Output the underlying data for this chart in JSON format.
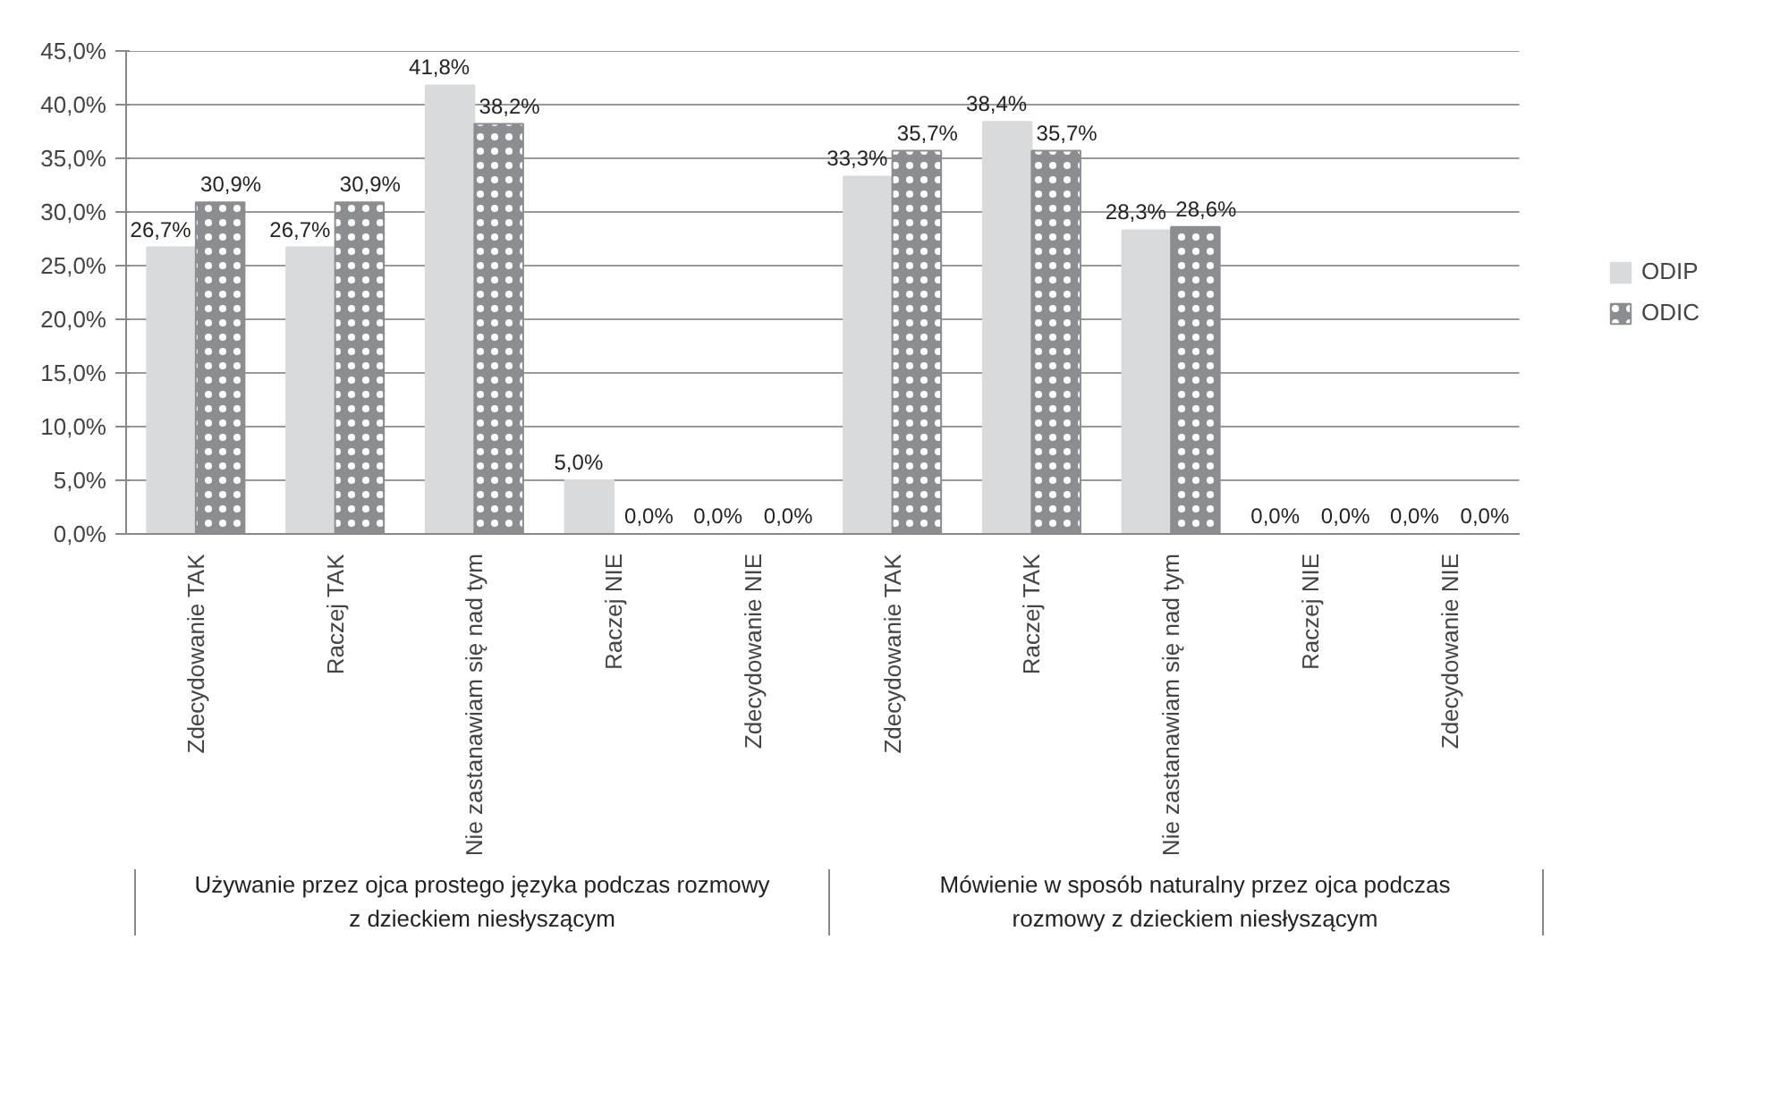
{
  "chart_data": {
    "type": "bar",
    "categories": [
      "Zdecydowanie TAK",
      "Raczej TAK",
      "Nie zastanawiam się nad tym",
      "Raczej NIE",
      "Zdecydowanie NIE",
      "Zdecydowanie TAK",
      "Raczej TAK",
      "Nie zastanawiam się nad tym",
      "Raczej NIE",
      "Zdecydowanie NIE"
    ],
    "series": [
      {
        "name": "ODIP",
        "color": "#d9dadc",
        "values": [
          26.7,
          26.7,
          41.8,
          5.0,
          0.0,
          33.3,
          38.4,
          28.3,
          0.0,
          0.0
        ],
        "value_labels": [
          "26,7%",
          "26,7%",
          "41,8%",
          "5,0%",
          "0,0%",
          "33,3%",
          "38,4%",
          "28,3%",
          "0,0%",
          "0,0%"
        ]
      },
      {
        "name": "ODIC",
        "color": "#8c8d91",
        "values": [
          30.9,
          30.9,
          38.2,
          0.0,
          0.0,
          35.7,
          35.7,
          28.6,
          0.0,
          0.0
        ],
        "value_labels": [
          "30,9%",
          "30,9%",
          "38,2%",
          "0,0%",
          "0,0%",
          "35,7%",
          "35,7%",
          "28,6%",
          "0,0%",
          "0,0%"
        ]
      }
    ],
    "ylim": [
      0,
      45
    ],
    "yticks": [
      {
        "value": 0,
        "label": "0,0%"
      },
      {
        "value": 5,
        "label": "5,0%"
      },
      {
        "value": 10,
        "label": "10,0%"
      },
      {
        "value": 15,
        "label": "15,0%"
      },
      {
        "value": 20,
        "label": "20,0%"
      },
      {
        "value": 25,
        "label": "25,0%"
      },
      {
        "value": 30,
        "label": "30,0%"
      },
      {
        "value": 35,
        "label": "35,0%"
      },
      {
        "value": 40,
        "label": "40,0%"
      },
      {
        "value": 45,
        "label": "45,0%"
      }
    ],
    "annotations": [
      "Używanie przez ojca prostego języka podczas rozmowy z dzieckiem niesłyszącym",
      "Mówienie w sposób naturalny przez ojca podczas rozmowy z dzieckiem niesłyszącym"
    ],
    "grid": "y",
    "legend": "right"
  }
}
